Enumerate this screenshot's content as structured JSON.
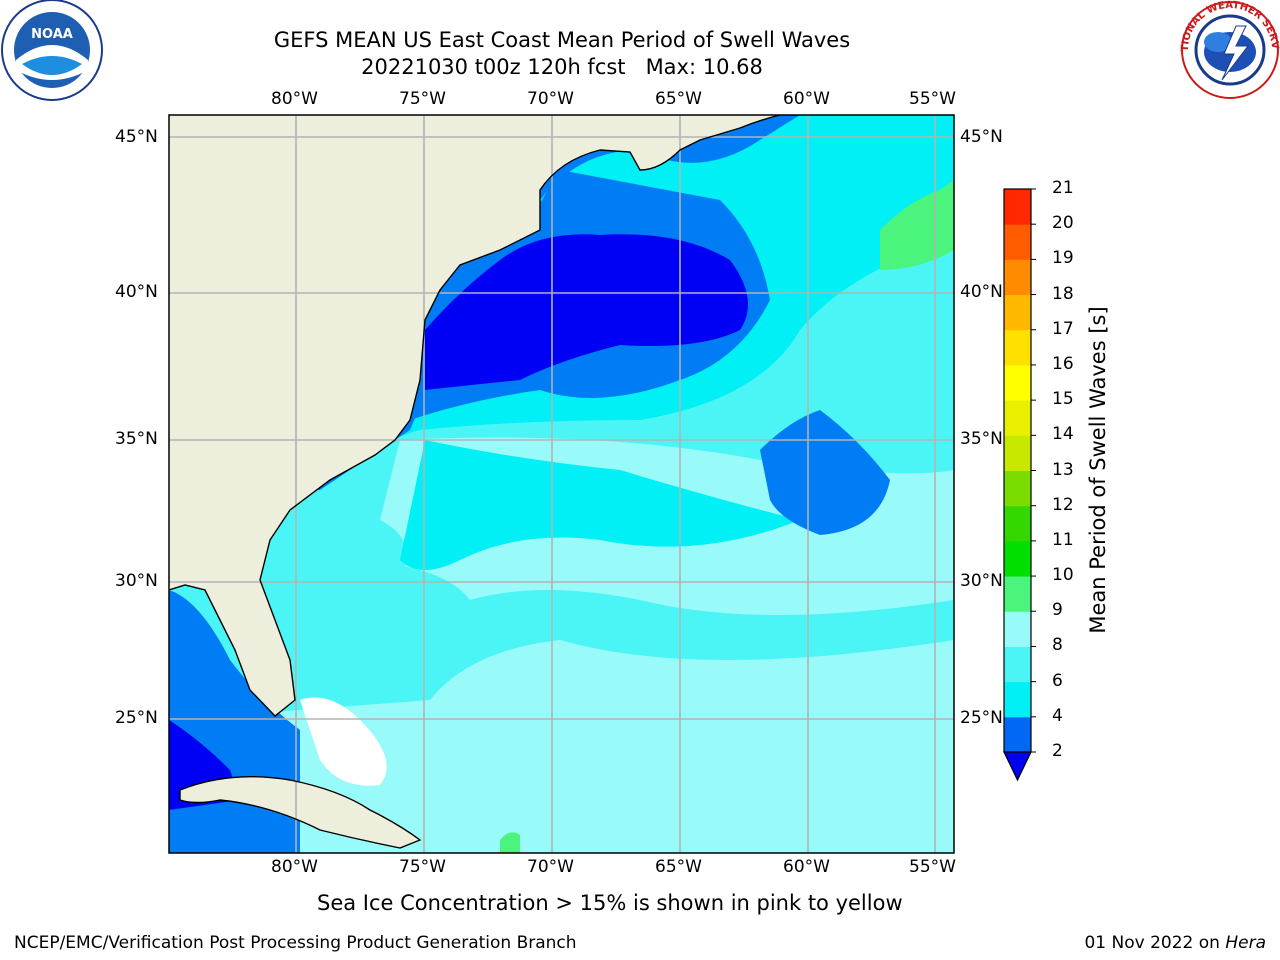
{
  "title": {
    "line1": "GEFS MEAN US East Coast Mean Period of Swell Waves",
    "line2": "20221030 t00z 120h fcst   Max: 10.68"
  },
  "map": {
    "lon_labels": [
      "80°W",
      "75°W",
      "70°W",
      "65°W",
      "60°W",
      "55°W"
    ],
    "lat_labels": [
      "45°N",
      "40°N",
      "35°N",
      "30°N",
      "25°N"
    ],
    "colors": {
      "land": "#eeeedd",
      "dark_blue": "#0000f5",
      "mid_blue": "#007df5",
      "cyan": "#00f0f5",
      "light_cyan": "#4bf5f5",
      "pale_cyan": "#99fafa",
      "green": "#4bf57d",
      "missing": "#ffffff"
    }
  },
  "colorbar": {
    "title": "Mean Period of Swell Waves [s]",
    "tick_labels": [
      "2",
      "4",
      "6",
      "8",
      "9",
      "10",
      "11",
      "12",
      "13",
      "14",
      "15",
      "16",
      "17",
      "18",
      "19",
      "20",
      "21"
    ],
    "colors": [
      "#0068f5",
      "#00f0f5",
      "#4bf5f5",
      "#99fafa",
      "#4bf57d",
      "#00e000",
      "#35d700",
      "#7bdc00",
      "#c9e800",
      "#e8f000",
      "#ffff00",
      "#ffe000",
      "#ffb800",
      "#ff8c00",
      "#ff5c00",
      "#ff2800",
      "#ff0000"
    ],
    "extend_color": "#0000f5"
  },
  "caption": "Sea Ice Concentration > 15% is shown in pink to yellow",
  "footer": {
    "left": "NCEP/EMC/Verification Post Processing Product Generation Branch",
    "right_date": "01 Nov 2022 on ",
    "right_host": "Hera"
  },
  "logos": {
    "noaa_text": "NOAA",
    "nws_text": "NATIONAL WEATHER SERVICE"
  }
}
